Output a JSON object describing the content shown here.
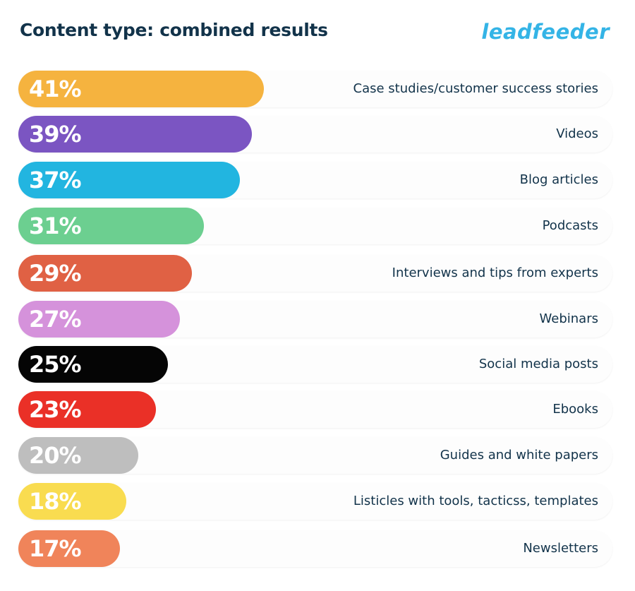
{
  "header": {
    "title": "Content type: combined results",
    "logo": "leadfeeder"
  },
  "chart_data": {
    "type": "bar",
    "orientation": "horizontal",
    "title": "Content type: combined results",
    "categories": [
      "Case studies/customer success stories",
      "Videos",
      "Blog articles",
      "Podcasts",
      "Interviews and tips from experts",
      "Webinars",
      "Social media posts",
      "Ebooks",
      "Guides and white papers",
      "Listicles with tools, tacticss, templates",
      "Newsletters"
    ],
    "values": [
      41,
      39,
      37,
      31,
      29,
      27,
      25,
      23,
      20,
      18,
      17
    ],
    "value_labels": [
      "41%",
      "39%",
      "37%",
      "31%",
      "29%",
      "27%",
      "25%",
      "23%",
      "20%",
      "18%",
      "17%"
    ],
    "unit": "%",
    "colors": [
      "#f5b33f",
      "#7b55c2",
      "#22b5e0",
      "#6ccf90",
      "#e06144",
      "#d592db",
      "#050505",
      "#ea3027",
      "#bebebe",
      "#f9dc50",
      "#f0845a"
    ],
    "grid": false,
    "legend": "none"
  }
}
